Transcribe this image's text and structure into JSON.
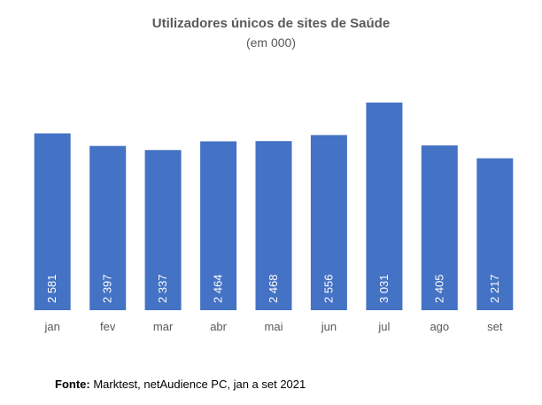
{
  "chart_data": {
    "type": "bar",
    "title": "Utilizadores únicos de sites de Saúde",
    "subtitle": "(em 000)",
    "categories": [
      "jan",
      "fev",
      "mar",
      "abr",
      "mai",
      "jun",
      "jul",
      "ago",
      "set"
    ],
    "values": [
      2581,
      2397,
      2337,
      2464,
      2468,
      2556,
      3031,
      2405,
      2217
    ],
    "data_labels": [
      "2 581",
      "2 397",
      "2 337",
      "2 464",
      "2 468",
      "2 556",
      "3 031",
      "2 405",
      "2 217"
    ],
    "ylim": [
      0,
      3400
    ],
    "grid": false,
    "legend": "none",
    "bar_color": "#4472C4"
  },
  "source": {
    "label": "Fonte:",
    "text": " Marktest, netAudience PC, jan a set 2021"
  }
}
